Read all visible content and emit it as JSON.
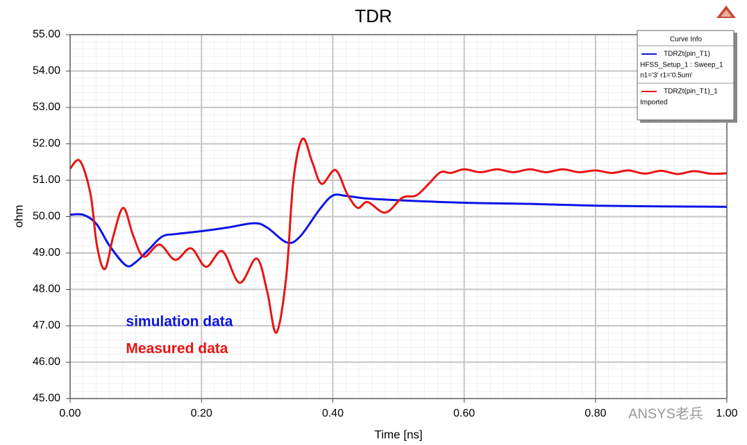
{
  "chart_data": {
    "type": "line",
    "title": "TDR",
    "x_label": "Time [ns]",
    "y_label": "ohm",
    "xlim": [
      0,
      1
    ],
    "ylim": [
      45,
      55
    ],
    "xticks": [
      {
        "value": 0,
        "label": "0.00"
      },
      {
        "value": 0.2,
        "label": "0.20"
      },
      {
        "value": 0.4,
        "label": "0.40"
      },
      {
        "value": 0.6,
        "label": "0.60"
      },
      {
        "value": 0.8,
        "label": "0.80"
      },
      {
        "value": 1,
        "label": "1.00"
      }
    ],
    "yticks": [
      {
        "value": 45,
        "label": "45.00"
      },
      {
        "value": 46,
        "label": "46.00"
      },
      {
        "value": 47,
        "label": "47.00"
      },
      {
        "value": 48,
        "label": "48.00"
      },
      {
        "value": 49,
        "label": "49.00"
      },
      {
        "value": 50,
        "label": "50.00"
      },
      {
        "value": 51,
        "label": "51.00"
      },
      {
        "value": 52,
        "label": "52.00"
      },
      {
        "value": 53,
        "label": "53.00"
      },
      {
        "value": 54,
        "label": "54.00"
      },
      {
        "value": 55,
        "label": "55.00"
      }
    ],
    "grid": true,
    "legend_title": "Curve Info",
    "legend_position": "top-right",
    "series": [
      {
        "name": "TDRZt(pin_T1)",
        "source": [
          "HFSS_Setup_1 : Sweep_1",
          "n1='3' r1='0.5um'"
        ],
        "color": "#0a14e6",
        "x": [
          0,
          0.02,
          0.04,
          0.06,
          0.085,
          0.1,
          0.12,
          0.14,
          0.16,
          0.2,
          0.24,
          0.28,
          0.3,
          0.33,
          0.35,
          0.38,
          0.4,
          0.42,
          0.45,
          0.5,
          0.6,
          0.7,
          0.8,
          0.9,
          1.0
        ],
        "values": [
          50.05,
          50.05,
          49.8,
          49.2,
          48.66,
          48.75,
          49.1,
          49.45,
          49.52,
          49.6,
          49.7,
          49.82,
          49.7,
          49.29,
          49.45,
          50.2,
          50.58,
          50.57,
          50.5,
          50.45,
          50.38,
          50.35,
          50.3,
          50.28,
          50.27
        ]
      },
      {
        "name": "TDRZt(pin_T1)_1",
        "source": [
          "Imported"
        ],
        "color": "#e81414",
        "x": [
          0,
          0.015,
          0.031,
          0.041,
          0.053,
          0.066,
          0.081,
          0.096,
          0.112,
          0.136,
          0.16,
          0.184,
          0.207,
          0.232,
          0.258,
          0.284,
          0.3,
          0.314,
          0.329,
          0.34,
          0.354,
          0.369,
          0.383,
          0.404,
          0.422,
          0.438,
          0.453,
          0.48,
          0.506,
          0.527,
          0.546,
          0.564,
          0.58,
          0.6,
          0.625,
          0.65,
          0.675,
          0.7,
          0.725,
          0.75,
          0.775,
          0.8,
          0.825,
          0.85,
          0.875,
          0.9,
          0.925,
          0.95,
          0.975,
          1.0
        ],
        "values": [
          51.32,
          51.53,
          50.62,
          49.19,
          48.56,
          49.48,
          50.24,
          49.48,
          48.9,
          49.23,
          48.81,
          49.13,
          48.62,
          49.05,
          48.18,
          48.85,
          47.95,
          46.81,
          48.33,
          51.0,
          52.14,
          51.48,
          50.9,
          51.28,
          50.62,
          50.24,
          50.4,
          50.11,
          50.52,
          50.58,
          50.9,
          51.22,
          51.2,
          51.3,
          51.22,
          51.3,
          51.22,
          51.3,
          51.22,
          51.3,
          51.22,
          51.27,
          51.2,
          51.27,
          51.18,
          51.26,
          51.17,
          51.25,
          51.18,
          51.19
        ]
      }
    ],
    "annotations": [
      {
        "text": "simulation data",
        "color": "#0a14e6",
        "x": 0.085,
        "y": 47.1
      },
      {
        "text": "Measured data",
        "color": "#e81414",
        "x": 0.085,
        "y": 46.35
      }
    ],
    "watermark": "ANSYS老兵"
  }
}
